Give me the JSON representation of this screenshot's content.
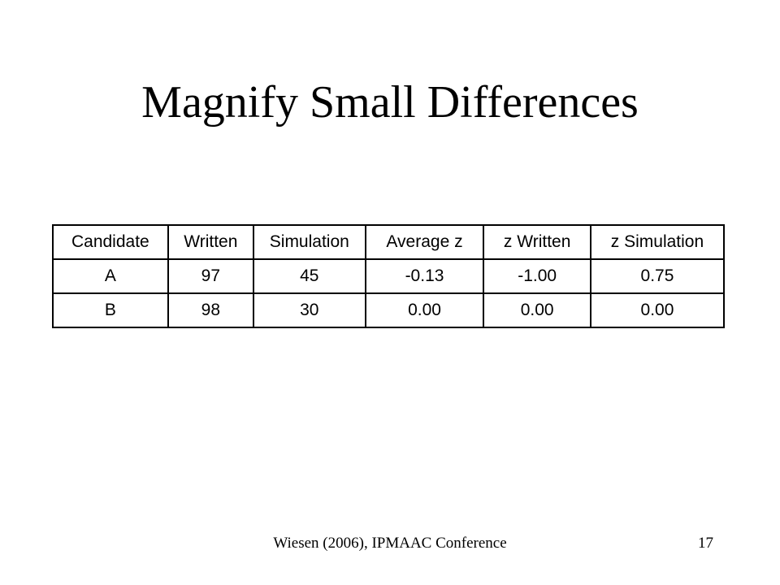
{
  "slide": {
    "title": "Magnify Small Differences",
    "footer": "Wiesen (2006), IPMAAC Conference",
    "page_number": "17"
  },
  "table": {
    "headers": [
      "Candidate",
      "Written",
      "Simulation",
      "Average z",
      "z Written",
      "z Simulation"
    ],
    "rows": [
      [
        "A",
        "97",
        "45",
        "-0.13",
        "-1.00",
        "0.75"
      ],
      [
        "B",
        "98",
        "30",
        "0.00",
        "0.00",
        "0.00"
      ]
    ]
  }
}
